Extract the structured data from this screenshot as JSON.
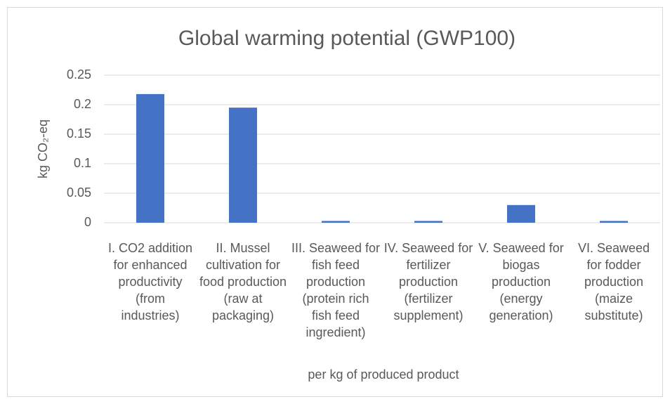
{
  "chart_data": {
    "type": "bar",
    "title": "Global warming potential (GWP100)",
    "x_label": "per kg of produced product",
    "y_label": "kg CO₂-eq",
    "categories": [
      "I. CO2 addition for enhanced productivity (from industries)",
      "II. Mussel cultivation for food production (raw at packaging)",
      "III. Seaweed for fish feed production (protein rich fish feed ingredient)",
      "IV. Seaweed for fertilizer production (fertilizer supplement)",
      "V. Seaweed for biogas production (energy generation)",
      "VI. Seaweed for fodder production (maize substitute)"
    ],
    "values": [
      0.218,
      0.195,
      0.003,
      0.003,
      0.03,
      0.003
    ],
    "color": "#4472c4",
    "ylim": [
      0,
      0.25
    ],
    "yticks": [
      0,
      0.05,
      0.1,
      0.15,
      0.2,
      0.25
    ],
    "grid": true
  }
}
